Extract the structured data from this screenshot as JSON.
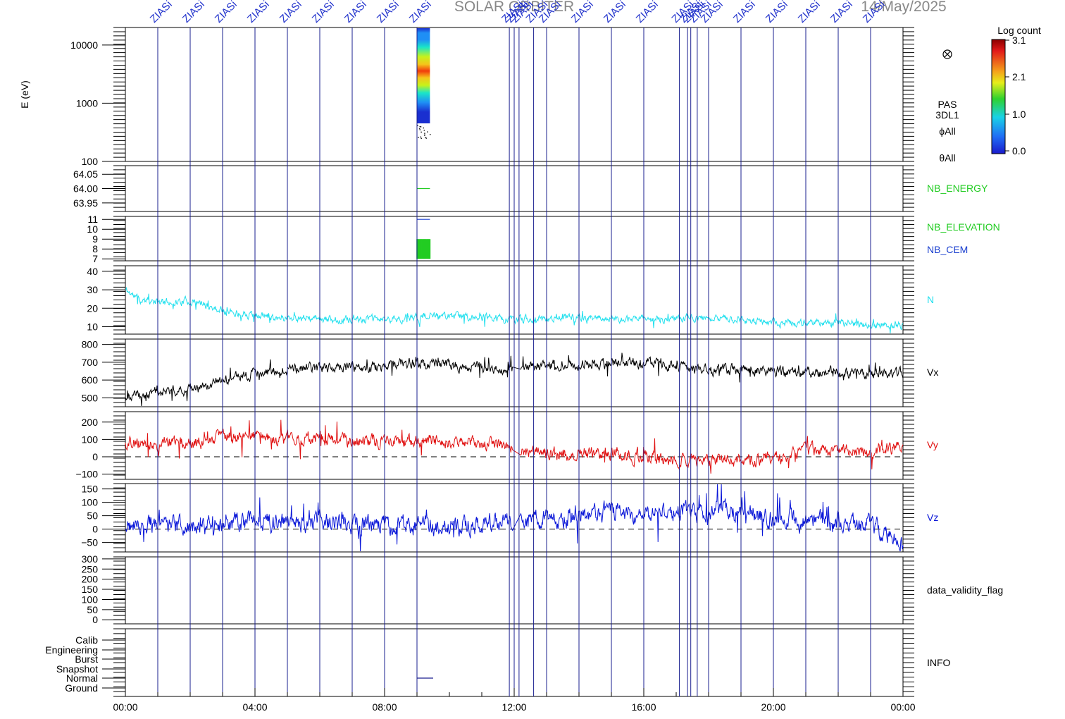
{
  "header": {
    "title": "SOLAR ORBITER",
    "date": "14/May/2025"
  },
  "event_label": "ZIASi",
  "event_hours": [
    1.0,
    2.0,
    3.0,
    4.0,
    5.0,
    6.0,
    7.0,
    8.0,
    9.0,
    11.85,
    12.0,
    12.15,
    12.6,
    13.0,
    14.0,
    15.0,
    16.0,
    17.1,
    17.35,
    17.45,
    17.65,
    18.0,
    19.0,
    20.0,
    21.0,
    22.0,
    23.0
  ],
  "x_axis": {
    "ticks": [
      "00:00",
      "04:00",
      "08:00",
      "12:00",
      "16:00",
      "20:00",
      "00:00"
    ],
    "range_hours": [
      0,
      24
    ]
  },
  "colorbar": {
    "title": "Log count",
    "ticks": [
      "3.1",
      "2.1",
      "1.0",
      "0.0"
    ]
  },
  "panels": {
    "spectrogram": {
      "ylabel": "E (eV)",
      "yticks": [
        "10000",
        "1000",
        "100"
      ],
      "labels": [
        "PAS",
        "3DL1",
        "ϕAll",
        "θAll"
      ],
      "circle_icon": "circle-x-icon"
    },
    "nb_energy": {
      "yticks": [
        "64.05",
        "64.00",
        "63.95"
      ],
      "label": "NB_ENERGY",
      "color": "#22cc22"
    },
    "nb_elev": {
      "yticks": [
        "11",
        "10",
        "9",
        "8",
        "7"
      ],
      "label1": "NB_ELEVATION",
      "label2": "NB_CEM",
      "color1": "#22cc22",
      "color2": "#1a3fcf"
    },
    "n": {
      "yticks": [
        "40",
        "30",
        "20",
        "10"
      ],
      "label": "N",
      "color": "#22e0ee"
    },
    "vx": {
      "yticks": [
        "800",
        "700",
        "600",
        "500"
      ],
      "label": "Vx",
      "color": "#000000"
    },
    "vy": {
      "yticks": [
        "200",
        "100",
        "0",
        "−100"
      ],
      "label": "Vy",
      "color": "#e01010"
    },
    "vz": {
      "yticks": [
        "150",
        "100",
        "50",
        "0",
        "−50"
      ],
      "label": "Vz",
      "color": "#0a17d8"
    },
    "dvf": {
      "yticks": [
        "300",
        "250",
        "200",
        "150",
        "100",
        "50",
        "0"
      ],
      "label": "data_validity_flag"
    },
    "info": {
      "yticks": [
        "Calib",
        "Engineering",
        "Burst",
        "Snapshot",
        "Normal",
        "Ground"
      ],
      "label": "INFO"
    }
  },
  "chart_data": [
    {
      "type": "heatmap",
      "ylabel": "E (eV)",
      "ylim": [
        100,
        20000
      ],
      "scale": "log",
      "x_range_hours": [
        9.0,
        9.4
      ],
      "colorbar_range": [
        0.0,
        3.1
      ],
      "peak_energy_ev": 2000
    },
    {
      "type": "line",
      "series": [
        {
          "name": "NB_ENERGY",
          "x": [
            9.0,
            9.4
          ],
          "values": [
            64.0,
            64.0
          ]
        }
      ],
      "ylim": [
        63.92,
        64.08
      ]
    },
    {
      "type": "line",
      "series": [
        {
          "name": "NB_ELEVATION",
          "x": [
            9.0,
            9.4
          ],
          "values": [
            7.0,
            9.0
          ]
        },
        {
          "name": "NB_CEM",
          "x": [
            9.0,
            9.4
          ],
          "values": [
            11.0,
            11.0
          ]
        }
      ],
      "ylim": [
        6.8,
        11.3
      ]
    },
    {
      "type": "line",
      "series": [
        {
          "name": "N",
          "x": [
            0,
            0.5,
            1,
            2,
            3,
            4,
            6,
            8,
            10,
            12,
            14,
            16,
            18,
            19,
            20,
            22,
            23,
            24
          ],
          "values": [
            30,
            24,
            23,
            24,
            19,
            16,
            14,
            14,
            16,
            14,
            15,
            14,
            15,
            14,
            12,
            12,
            11,
            11
          ]
        }
      ],
      "ylim": [
        6,
        43
      ]
    },
    {
      "type": "line",
      "series": [
        {
          "name": "Vx",
          "x": [
            0,
            1,
            2,
            3,
            4,
            5,
            6,
            8,
            9,
            10,
            12,
            13,
            14,
            16,
            17,
            18,
            20,
            22,
            23.5,
            24
          ],
          "values": [
            500,
            530,
            555,
            600,
            635,
            655,
            665,
            680,
            690,
            680,
            665,
            690,
            690,
            700,
            675,
            660,
            650,
            640,
            630,
            640
          ]
        }
      ],
      "ylim": [
        450,
        830
      ]
    },
    {
      "type": "line",
      "series": [
        {
          "name": "Vy",
          "x": [
            0,
            2,
            3,
            4,
            6,
            8,
            10,
            11.5,
            12.2,
            13,
            14,
            15,
            16,
            17,
            18,
            19,
            20.5,
            20.8,
            22,
            23,
            24
          ],
          "values": [
            80,
            80,
            110,
            110,
            100,
            90,
            85,
            80,
            30,
            15,
            20,
            25,
            5,
            -25,
            -25,
            -15,
            -5,
            50,
            35,
            30,
            60
          ]
        }
      ],
      "ylim": [
        -130,
        260
      ]
    },
    {
      "type": "line",
      "series": [
        {
          "name": "Vz",
          "x": [
            0,
            1,
            2,
            3,
            4,
            6,
            8,
            10,
            11.5,
            12.2,
            13,
            14,
            15,
            16,
            17,
            18,
            19,
            20,
            21,
            22,
            23,
            23.6,
            24
          ],
          "values": [
            15,
            20,
            15,
            20,
            30,
            25,
            15,
            10,
            15,
            35,
            35,
            50,
            70,
            50,
            60,
            65,
            60,
            45,
            30,
            25,
            20,
            -30,
            -40
          ]
        }
      ],
      "ylim": [
        -85,
        170
      ],
      "reference_line": 0
    },
    {
      "type": "line",
      "series": [],
      "ylim": [
        -20,
        310
      ]
    },
    {
      "type": "line",
      "series": [
        {
          "name": "INFO",
          "x": [
            9.0,
            9.5
          ],
          "values": [
            "Normal",
            "Normal"
          ]
        }
      ]
    }
  ]
}
